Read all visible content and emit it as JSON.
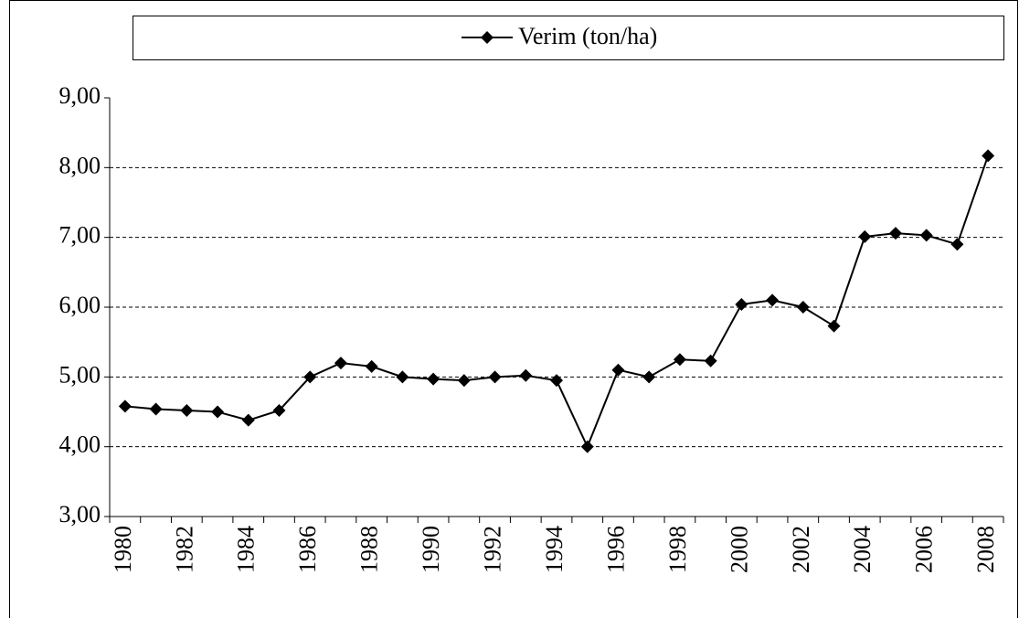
{
  "chart_data": {
    "type": "line",
    "categories": [
      "1980",
      null,
      "1982",
      null,
      "1984",
      null,
      "1986",
      null,
      "1988",
      null,
      "1990",
      null,
      "1992",
      null,
      "1994",
      null,
      "1996",
      null,
      "1998",
      null,
      "2000",
      null,
      "2002",
      null,
      "2004",
      null,
      "2006",
      null,
      "2008"
    ],
    "series": [
      {
        "name": "Verim (ton/ha)",
        "color": "#000000",
        "values": [
          4.58,
          4.54,
          4.52,
          4.5,
          4.38,
          4.52,
          5.0,
          5.2,
          5.15,
          5.0,
          4.97,
          4.95,
          5.0,
          5.02,
          4.95,
          4.0,
          5.1,
          5.0,
          5.25,
          5.23,
          6.04,
          6.1,
          6.0,
          5.73,
          7.01,
          7.06,
          7.03,
          6.9,
          8.17
        ]
      }
    ],
    "ylim": [
      3,
      9
    ],
    "yticks": [
      {
        "value": 3,
        "label": "3,00"
      },
      {
        "value": 4,
        "label": "4,00"
      },
      {
        "value": 5,
        "label": "5,00"
      },
      {
        "value": 6,
        "label": "6,00"
      },
      {
        "value": 7,
        "label": "7,00"
      },
      {
        "value": 8,
        "label": "8,00"
      },
      {
        "value": 9,
        "label": "9,00"
      }
    ],
    "grid": true,
    "legend": "top"
  }
}
